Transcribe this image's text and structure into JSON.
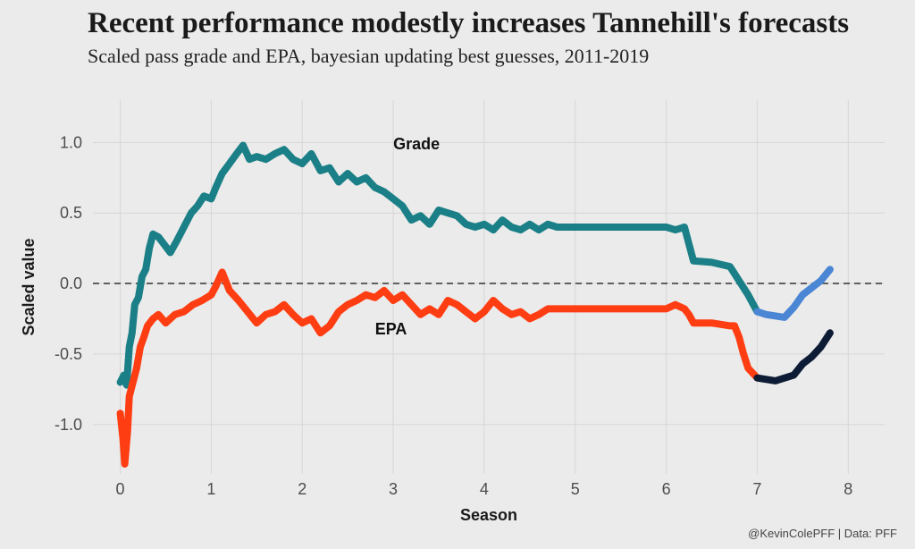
{
  "title": "Recent performance modestly increases Tannehill's forecasts",
  "subtitle": "Scaled pass grade and EPA, bayesian updating best guesses, 2011-2019",
  "caption": "@KevinColePFF | Data: PFF",
  "colors": {
    "background": "#ebebeb",
    "grid": "#d6d6d6",
    "grade_early": "#1a7f86",
    "grade_recent": "#4a86d4",
    "epa_early": "#ff3d12",
    "epa_recent": "#0d1b35",
    "reference_line": "#333333"
  },
  "chart_data": {
    "type": "line",
    "xlabel": "Season",
    "ylabel": "Scaled value",
    "xlim": [
      -0.3,
      8.4
    ],
    "ylim": [
      -1.35,
      1.3
    ],
    "x_ticks": [
      "0",
      "1",
      "2",
      "3",
      "4",
      "5",
      "6",
      "7",
      "8"
    ],
    "x_tick_values": [
      0,
      1,
      2,
      3,
      4,
      5,
      6,
      7,
      8
    ],
    "y_ticks": [
      "1.0",
      "0.5",
      "0.0",
      "-0.5",
      "-1.0"
    ],
    "y_tick_values": [
      1.0,
      0.5,
      0.0,
      -0.5,
      -1.0
    ],
    "reference_line": {
      "y": 0,
      "style": "dashed"
    },
    "grid": true,
    "series": [
      {
        "name": "Grade",
        "color_early": "#1a7f86",
        "color_recent": "#4a86d4",
        "recent_from_x": 7.0,
        "label": {
          "text": "Grade",
          "x": 3.0,
          "y": 0.95
        },
        "points": [
          [
            0,
            -0.7
          ],
          [
            0.04,
            -0.65
          ],
          [
            0.07,
            -0.72
          ],
          [
            0.1,
            -0.45
          ],
          [
            0.13,
            -0.35
          ],
          [
            0.16,
            -0.15
          ],
          [
            0.2,
            -0.1
          ],
          [
            0.24,
            0.05
          ],
          [
            0.28,
            0.1
          ],
          [
            0.32,
            0.25
          ],
          [
            0.36,
            0.35
          ],
          [
            0.42,
            0.33
          ],
          [
            0.48,
            0.28
          ],
          [
            0.55,
            0.22
          ],
          [
            0.62,
            0.3
          ],
          [
            0.7,
            0.4
          ],
          [
            0.78,
            0.5
          ],
          [
            0.85,
            0.55
          ],
          [
            0.92,
            0.62
          ],
          [
            1.0,
            0.6
          ],
          [
            1.05,
            0.68
          ],
          [
            1.12,
            0.78
          ],
          [
            1.2,
            0.85
          ],
          [
            1.28,
            0.92
          ],
          [
            1.35,
            0.98
          ],
          [
            1.42,
            0.88
          ],
          [
            1.5,
            0.9
          ],
          [
            1.6,
            0.88
          ],
          [
            1.7,
            0.92
          ],
          [
            1.8,
            0.95
          ],
          [
            1.9,
            0.88
          ],
          [
            2.0,
            0.85
          ],
          [
            2.1,
            0.92
          ],
          [
            2.2,
            0.8
          ],
          [
            2.3,
            0.82
          ],
          [
            2.4,
            0.72
          ],
          [
            2.5,
            0.78
          ],
          [
            2.6,
            0.72
          ],
          [
            2.7,
            0.75
          ],
          [
            2.8,
            0.68
          ],
          [
            2.9,
            0.65
          ],
          [
            3.0,
            0.6
          ],
          [
            3.1,
            0.55
          ],
          [
            3.2,
            0.45
          ],
          [
            3.3,
            0.48
          ],
          [
            3.4,
            0.42
          ],
          [
            3.5,
            0.52
          ],
          [
            3.6,
            0.5
          ],
          [
            3.7,
            0.48
          ],
          [
            3.8,
            0.42
          ],
          [
            3.9,
            0.4
          ],
          [
            4.0,
            0.42
          ],
          [
            4.1,
            0.38
          ],
          [
            4.2,
            0.45
          ],
          [
            4.3,
            0.4
          ],
          [
            4.4,
            0.38
          ],
          [
            4.5,
            0.42
          ],
          [
            4.6,
            0.38
          ],
          [
            4.7,
            0.42
          ],
          [
            4.8,
            0.4
          ],
          [
            6.0,
            0.4
          ],
          [
            6.1,
            0.38
          ],
          [
            6.2,
            0.4
          ],
          [
            6.25,
            0.28
          ],
          [
            6.3,
            0.16
          ],
          [
            6.5,
            0.15
          ],
          [
            6.7,
            0.12
          ],
          [
            6.8,
            0.02
          ],
          [
            6.9,
            -0.08
          ],
          [
            7.0,
            -0.2
          ],
          [
            7.1,
            -0.22
          ],
          [
            7.3,
            -0.24
          ],
          [
            7.4,
            -0.17
          ],
          [
            7.5,
            -0.08
          ],
          [
            7.6,
            -0.03
          ],
          [
            7.7,
            0.02
          ],
          [
            7.8,
            0.1
          ]
        ]
      },
      {
        "name": "EPA",
        "color_early": "#ff3d12",
        "color_recent": "#0d1b35",
        "recent_from_x": 7.0,
        "label": {
          "text": "EPA",
          "x": 2.8,
          "y": -0.36
        },
        "points": [
          [
            0,
            -0.92
          ],
          [
            0.03,
            -1.1
          ],
          [
            0.05,
            -1.28
          ],
          [
            0.08,
            -1.05
          ],
          [
            0.1,
            -0.8
          ],
          [
            0.14,
            -0.7
          ],
          [
            0.18,
            -0.6
          ],
          [
            0.22,
            -0.45
          ],
          [
            0.26,
            -0.38
          ],
          [
            0.3,
            -0.3
          ],
          [
            0.36,
            -0.25
          ],
          [
            0.42,
            -0.22
          ],
          [
            0.5,
            -0.28
          ],
          [
            0.6,
            -0.22
          ],
          [
            0.7,
            -0.2
          ],
          [
            0.8,
            -0.15
          ],
          [
            0.9,
            -0.12
          ],
          [
            1.0,
            -0.08
          ],
          [
            1.05,
            -0.02
          ],
          [
            1.12,
            0.08
          ],
          [
            1.2,
            -0.05
          ],
          [
            1.3,
            -0.12
          ],
          [
            1.4,
            -0.2
          ],
          [
            1.5,
            -0.28
          ],
          [
            1.6,
            -0.22
          ],
          [
            1.7,
            -0.2
          ],
          [
            1.8,
            -0.15
          ],
          [
            1.9,
            -0.22
          ],
          [
            2.0,
            -0.28
          ],
          [
            2.1,
            -0.25
          ],
          [
            2.2,
            -0.35
          ],
          [
            2.3,
            -0.3
          ],
          [
            2.4,
            -0.2
          ],
          [
            2.5,
            -0.15
          ],
          [
            2.6,
            -0.12
          ],
          [
            2.7,
            -0.08
          ],
          [
            2.8,
            -0.1
          ],
          [
            2.9,
            -0.05
          ],
          [
            3.0,
            -0.12
          ],
          [
            3.1,
            -0.08
          ],
          [
            3.2,
            -0.15
          ],
          [
            3.3,
            -0.22
          ],
          [
            3.4,
            -0.18
          ],
          [
            3.5,
            -0.22
          ],
          [
            3.6,
            -0.12
          ],
          [
            3.7,
            -0.15
          ],
          [
            3.8,
            -0.2
          ],
          [
            3.9,
            -0.25
          ],
          [
            4.0,
            -0.2
          ],
          [
            4.1,
            -0.12
          ],
          [
            4.2,
            -0.18
          ],
          [
            4.3,
            -0.22
          ],
          [
            4.4,
            -0.2
          ],
          [
            4.5,
            -0.25
          ],
          [
            4.6,
            -0.22
          ],
          [
            4.7,
            -0.18
          ],
          [
            4.8,
            -0.18
          ],
          [
            6.0,
            -0.18
          ],
          [
            6.1,
            -0.15
          ],
          [
            6.2,
            -0.18
          ],
          [
            6.25,
            -0.22
          ],
          [
            6.3,
            -0.28
          ],
          [
            6.5,
            -0.28
          ],
          [
            6.7,
            -0.3
          ],
          [
            6.75,
            -0.3
          ],
          [
            6.8,
            -0.38
          ],
          [
            6.85,
            -0.5
          ],
          [
            6.9,
            -0.6
          ],
          [
            7.0,
            -0.67
          ],
          [
            7.2,
            -0.69
          ],
          [
            7.4,
            -0.65
          ],
          [
            7.5,
            -0.57
          ],
          [
            7.6,
            -0.52
          ],
          [
            7.7,
            -0.45
          ],
          [
            7.8,
            -0.35
          ]
        ]
      }
    ]
  }
}
